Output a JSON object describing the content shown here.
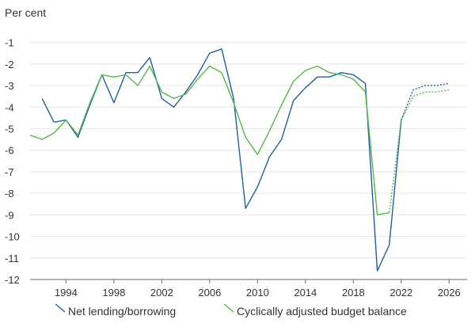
{
  "chart_data": {
    "type": "line",
    "ylabel": "Per cent",
    "xlabel": "",
    "x_ticks": [
      1994,
      1998,
      2002,
      2006,
      2010,
      2014,
      2018,
      2022,
      2026
    ],
    "y_ticks": [
      -1,
      -2,
      -3,
      -4,
      -5,
      -6,
      -7,
      -8,
      -9,
      -10,
      -11,
      -12
    ],
    "xlim": [
      1991,
      2027.5
    ],
    "ylim": [
      -12,
      -0.5
    ],
    "grid": true,
    "legend_position": "bottom",
    "series": [
      {
        "name": "Net lending/borrowing",
        "color": "#1f5fa6",
        "x": [
          1992,
          1993,
          1994,
          1995,
          1996,
          1997,
          1998,
          1999,
          2000,
          2001,
          2002,
          2003,
          2004,
          2005,
          2006,
          2007,
          2008,
          2009,
          2010,
          2011,
          2012,
          2013,
          2014,
          2015,
          2016,
          2017,
          2018,
          2019,
          2020,
          2021,
          2022,
          2023,
          2024,
          2025,
          2026
        ],
        "values": [
          -3.6,
          -4.7,
          -4.6,
          -5.4,
          -3.9,
          -2.5,
          -3.8,
          -2.4,
          -2.4,
          -1.7,
          -3.6,
          -4.0,
          -3.3,
          -2.5,
          -1.5,
          -1.3,
          -3.6,
          -8.7,
          -7.7,
          -6.3,
          -5.5,
          -3.7,
          -3.1,
          -2.6,
          -2.6,
          -2.4,
          -2.5,
          -2.9,
          -11.6,
          -10.4,
          -4.6,
          -3.2,
          -3.0,
          -3.0,
          -2.9
        ],
        "projection_from_index": 30
      },
      {
        "name": "Cyclically adjusted budget balance",
        "color": "#56b84a",
        "x": [
          1991,
          1992,
          1993,
          1994,
          1995,
          1996,
          1997,
          1998,
          1999,
          2000,
          2001,
          2002,
          2003,
          2004,
          2005,
          2006,
          2007,
          2008,
          2009,
          2010,
          2011,
          2012,
          2013,
          2014,
          2015,
          2016,
          2017,
          2018,
          2019,
          2020,
          2021,
          2022,
          2023,
          2024,
          2025,
          2026
        ],
        "values": [
          -5.3,
          -5.5,
          -5.2,
          -4.6,
          -5.3,
          -3.8,
          -2.5,
          -2.6,
          -2.5,
          -3.0,
          -2.1,
          -3.3,
          -3.6,
          -3.4,
          -2.7,
          -2.1,
          -2.4,
          -3.8,
          -5.4,
          -6.2,
          -5.1,
          -3.9,
          -2.8,
          -2.3,
          -2.1,
          -2.4,
          -2.5,
          -2.7,
          -3.3,
          -9.0,
          -8.9,
          -4.6,
          -3.5,
          -3.3,
          -3.3,
          -3.2
        ],
        "projection_from_index": 30
      }
    ]
  }
}
